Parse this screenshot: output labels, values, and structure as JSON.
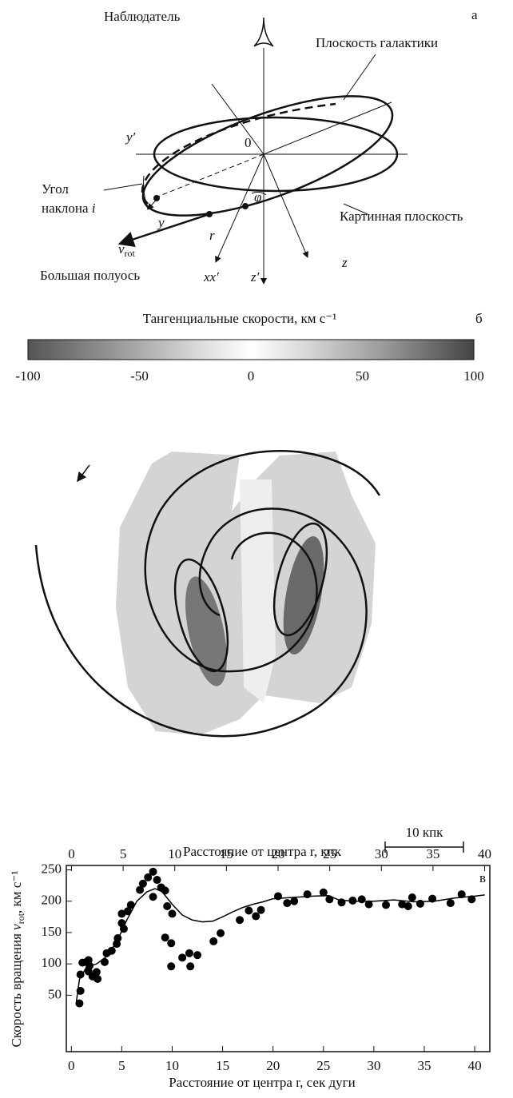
{
  "diagram": {
    "panel_label": "а",
    "observer": "Наблюдатель",
    "galaxy_plane": "Плоскость галактики",
    "y_prime": "y′",
    "origin": "0",
    "angle_line1": "Угол",
    "angle_line2": "наклона ",
    "angle_i": "i",
    "y": "y",
    "r": "r",
    "v": "v",
    "rot": "rot",
    "sky_plane": "Картинная плоскость",
    "z": "z",
    "major_axis": "Большая полуось",
    "xx": "xx′",
    "z_prime": "z′",
    "phi": "φ"
  },
  "velocity_map": {
    "panel_label": "б",
    "title": "Тангенциальные скорости, км с⁻¹",
    "lim": [
      -100,
      100
    ],
    "ticks": [
      -100,
      -50,
      0,
      50,
      100
    ],
    "scale_bar": "10 кпк"
  },
  "chart_data": {
    "type": "scatter",
    "panel_label": "в",
    "xlabel": "Расстояние от центра r, сек дуги",
    "x2label": "Расстояние от центра r, кпк",
    "ylabel_parts": [
      "Скорость вращения ",
      "v",
      "rot",
      ", км с⁻¹"
    ],
    "xlim": [
      -0.5,
      41.5
    ],
    "xticks": [
      0,
      5,
      10,
      15,
      20,
      25,
      30,
      35,
      40
    ],
    "x2lim": [
      -0.5,
      40.5
    ],
    "x2ticks": [
      0,
      5,
      10,
      15,
      20,
      25,
      30,
      35,
      40
    ],
    "ylim": [
      -40,
      257
    ],
    "yticks": [
      50,
      100,
      150,
      200,
      250
    ],
    "grid": false,
    "series": [
      {
        "type": "scatter",
        "color": "#000000",
        "x": [
          0.8,
          0.9,
          0.9,
          1.1,
          1.5,
          1.7,
          1.8,
          1.7,
          2.1,
          2.5,
          2.6,
          3.3,
          3.5,
          4.0,
          4.5,
          4.6,
          5.0,
          5.0,
          5.2,
          5.6,
          5.9,
          6.8,
          7.1,
          7.6,
          8.1,
          8.1,
          8.5,
          8.9,
          9.3,
          9.5,
          9.3,
          9.9,
          10.0,
          9.9,
          11.0,
          11.7,
          11.8,
          12.5,
          14.1,
          14.8,
          16.7,
          17.6,
          18.3,
          18.8,
          20.5,
          21.4,
          22.1,
          23.4,
          25.0,
          25.6,
          26.8,
          27.9,
          28.8,
          29.5,
          31.2,
          32.8,
          33.4,
          33.8,
          34.6,
          35.8,
          37.6,
          38.7,
          39.7
        ],
        "values": [
          37,
          57,
          83,
          102,
          103,
          106,
          97,
          88,
          80,
          87,
          76,
          103,
          117,
          121,
          132,
          141,
          165,
          180,
          156,
          184,
          194,
          218,
          228,
          238,
          247,
          207,
          234,
          222,
          217,
          192,
          142,
          133,
          180,
          96,
          110,
          117,
          96,
          114,
          136,
          149,
          170,
          185,
          176,
          186,
          208,
          197,
          200,
          211,
          214,
          203,
          198,
          201,
          203,
          195,
          194,
          195,
          192,
          206,
          196,
          204,
          197,
          211,
          203
        ]
      },
      {
        "type": "line",
        "color": "#000000",
        "x": [
          0.5,
          0.8,
          1.5,
          2.5,
          3.5,
          4.5,
          5.5,
          6.5,
          7.5,
          8.3,
          9,
          10,
          11,
          12,
          13,
          14,
          15,
          16,
          17,
          18,
          19,
          20,
          22,
          24,
          25.5,
          26.5,
          28,
          30,
          32,
          34,
          36,
          38,
          40,
          41
        ],
        "values": [
          40,
          75,
          95,
          100,
          112,
          135,
          170,
          200,
          215,
          220,
          215,
          195,
          178,
          170,
          167,
          168,
          175,
          183,
          190,
          195,
          199,
          204,
          206,
          208,
          209,
          202,
          200,
          200,
          202,
          199,
          200,
          205,
          208,
          210
        ]
      }
    ]
  }
}
